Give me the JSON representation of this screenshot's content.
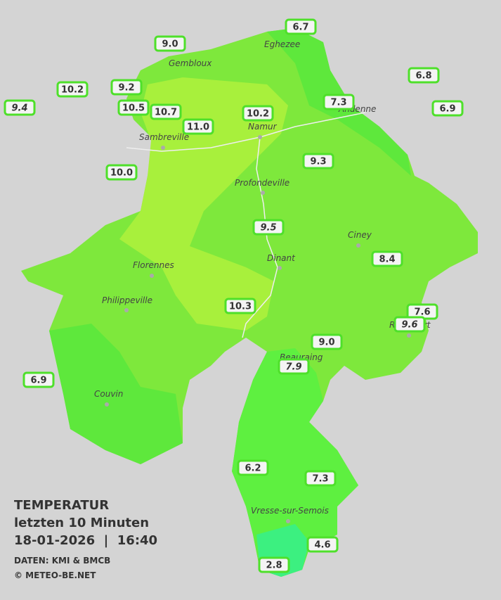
{
  "title": {
    "line1": "TEMPERATUR",
    "line2": "letzten 10 Minuten",
    "line3": "18-01-2026  |  16:40",
    "credit1": "DATEN: KMI & BMCB",
    "credit2": "© METEO-BE.NET"
  },
  "towns": [
    "Eghezee",
    "Gembloux",
    "Andenne",
    "Namur",
    "Sambreville",
    "Profondeville",
    "Ciney",
    "Dinant",
    "Florennes",
    "Philippeville",
    "Rochefort",
    "Beauraing",
    "Couvin",
    "Vresse-sur-Semois"
  ],
  "stations": [
    "6.7",
    "9.0",
    "6.8",
    "10.2",
    "9.2",
    "9.4",
    "7.3",
    "6.9",
    "10.5",
    "10.7",
    "10.2",
    "11.0",
    "9.3",
    "10.0",
    "9.5",
    "8.4",
    "10.3",
    "7.6",
    "9.6",
    "9.0",
    "7.9",
    "6.9",
    "6.2",
    "7.3",
    "4.6",
    "2.8"
  ]
}
